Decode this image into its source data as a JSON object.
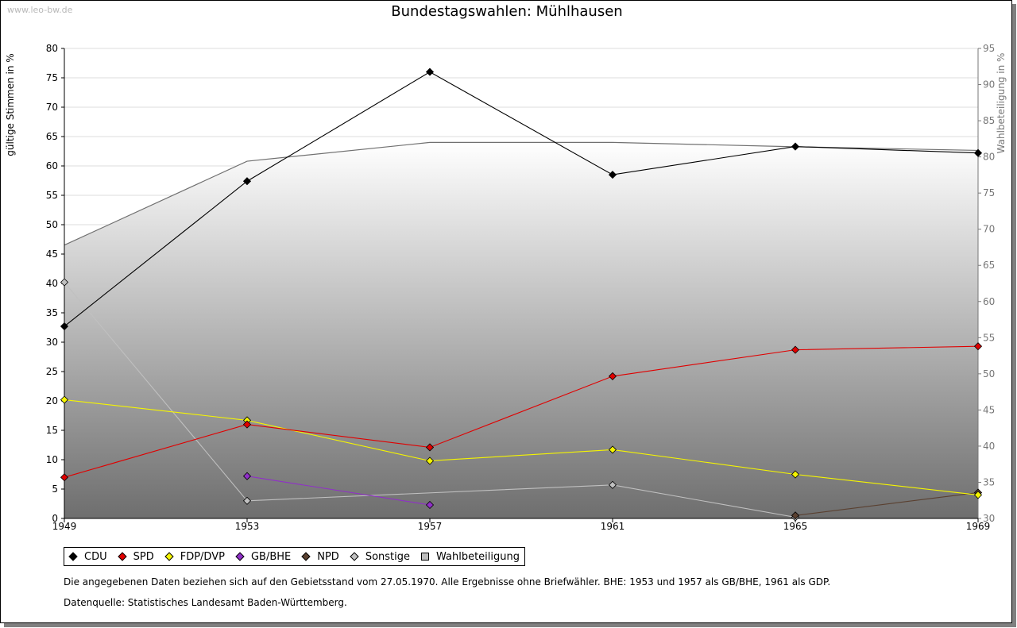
{
  "watermark": "www.leo-bw.de",
  "title": "Bundestagswahlen: Mühlhausen",
  "chart_data": {
    "type": "line",
    "title": "Bundestagswahlen: Mühlhausen",
    "x": [
      "1949",
      "1953",
      "1957",
      "1961",
      "1965",
      "1969"
    ],
    "ylabel_left": "gültige Stimmen in %",
    "ylabel_right": "Wahlbeteiligung in %",
    "ylim_left": [
      0,
      80
    ],
    "ylim_right": [
      30,
      95
    ],
    "yticks_left": [
      "0",
      "5",
      "10",
      "15",
      "20",
      "25",
      "30",
      "35",
      "40",
      "45",
      "50",
      "55",
      "60",
      "65",
      "70",
      "75",
      "80"
    ],
    "yticks_right": [
      "30",
      "35",
      "40",
      "45",
      "50",
      "55",
      "60",
      "65",
      "70",
      "75",
      "80",
      "85",
      "90",
      "95"
    ],
    "grid": true,
    "series": [
      {
        "name": "CDU",
        "color": "#000000",
        "values": [
          32.7,
          57.4,
          76.0,
          58.5,
          63.3,
          62.2
        ]
      },
      {
        "name": "SPD",
        "color": "#e00000",
        "values": [
          7.0,
          16.0,
          12.1,
          24.2,
          28.7,
          29.3
        ]
      },
      {
        "name": "FDP/DVP",
        "color": "#f5f500",
        "values": [
          20.2,
          16.7,
          9.8,
          11.7,
          7.5,
          4.0
        ]
      },
      {
        "name": "GB/BHE",
        "color": "#9030c8",
        "values": [
          null,
          7.2,
          2.3,
          null,
          null,
          null
        ]
      },
      {
        "name": "NPD",
        "color": "#5a4030",
        "values": [
          null,
          null,
          null,
          null,
          0.5,
          4.4
        ]
      },
      {
        "name": "Sonstige",
        "color": "#c0c0c0",
        "values": [
          40.2,
          3.0,
          null,
          5.7,
          0.2,
          null
        ]
      }
    ],
    "turnout": {
      "name": "Wahlbeteiligung",
      "axis": "right",
      "values": [
        67.8,
        79.4,
        82.0,
        82.0,
        81.4,
        80.9
      ]
    }
  },
  "legend": [
    {
      "label": "CDU",
      "color": "#000000"
    },
    {
      "label": "SPD",
      "color": "#e00000"
    },
    {
      "label": "FDP/DVP",
      "color": "#f5f500"
    },
    {
      "label": "GB/BHE",
      "color": "#9030c8"
    },
    {
      "label": "NPD",
      "color": "#5a4030"
    },
    {
      "label": "Sonstige",
      "color": "#c0c0c0"
    },
    {
      "label": "Wahlbeteiligung",
      "color": "#bdbdbd"
    }
  ],
  "notes": {
    "line1": "Die angegebenen Daten beziehen sich auf den Gebietsstand vom 27.05.1970. Alle Ergebnisse ohne Briefwähler. BHE: 1953 und 1957 als GB/BHE, 1961 als GDP.",
    "line2": "Datenquelle: Statistisches Landesamt Baden-Württemberg."
  }
}
